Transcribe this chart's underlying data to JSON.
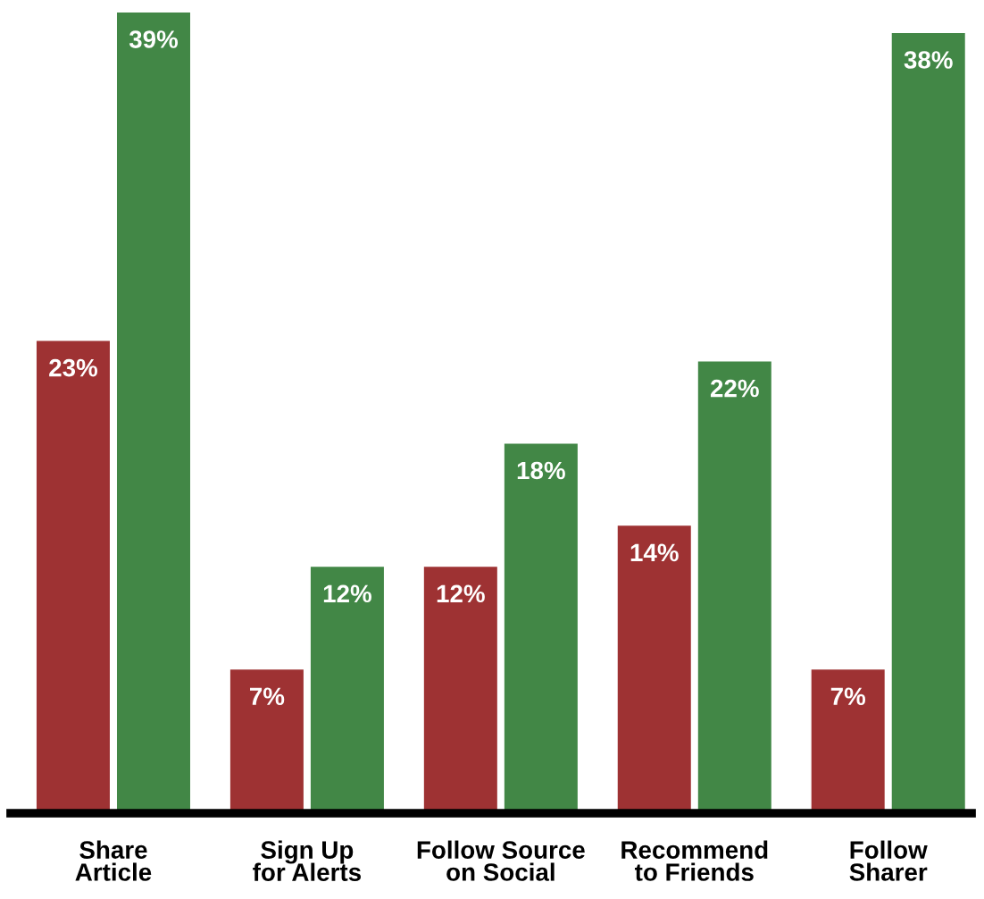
{
  "chart_data": {
    "type": "bar",
    "categories": [
      "Share\nArticle",
      "Sign Up\nfor Alerts",
      "Follow Source\non Social",
      "Recommend\nto Friends",
      "Follow\nSharer"
    ],
    "series": [
      {
        "color": "#9e3233",
        "values": [
          23,
          7,
          12,
          14,
          7
        ],
        "value_labels": [
          "23%",
          "7%",
          "12%",
          "14%",
          "7%"
        ]
      },
      {
        "color": "#428746",
        "values": [
          39,
          12,
          18,
          22,
          38
        ],
        "value_labels": [
          "39%",
          "12%",
          "18%",
          "22%",
          "38%"
        ]
      }
    ],
    "tick_labels": "x",
    "grid": false,
    "legend": false
  }
}
